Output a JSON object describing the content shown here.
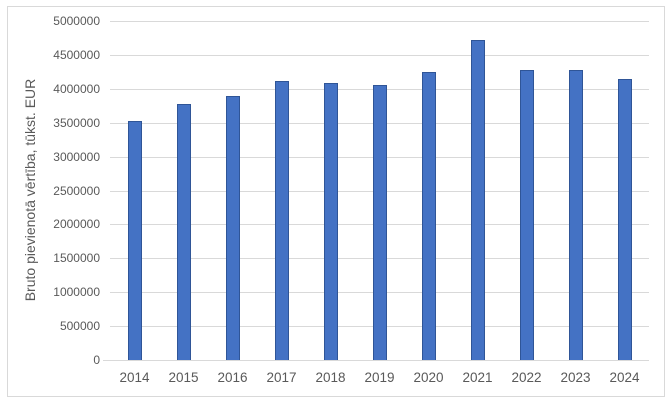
{
  "chart_data": {
    "type": "bar",
    "title": "",
    "categories": [
      "2014",
      "2015",
      "2016",
      "2017",
      "2018",
      "2019",
      "2020",
      "2021",
      "2022",
      "2023",
      "2024"
    ],
    "values": [
      3520000,
      3780000,
      3900000,
      4110000,
      4080000,
      4060000,
      4250000,
      4720000,
      4280000,
      4270000,
      4140000
    ],
    "xlabel": "",
    "ylabel": "Bruto pievienotā vērtība, tūkst. EUR",
    "ylim": [
      0,
      5000000
    ],
    "ytick_step": 500000,
    "ytick_labels": [
      "0",
      "500000",
      "1000000",
      "1500000",
      "2000000",
      "2500000",
      "3000000",
      "3500000",
      "4000000",
      "4500000",
      "5000000"
    ],
    "grid": true,
    "legend": false,
    "colors": {
      "bar_fill": "#4472C4",
      "bar_border": "#2F5597",
      "gridline": "#D9D9D9",
      "axis_line": "#D9D9D9",
      "tick_label": "#595959",
      "axis_title": "#595959",
      "frame_border": "#D9D9D9",
      "background": "#FFFFFF"
    }
  }
}
